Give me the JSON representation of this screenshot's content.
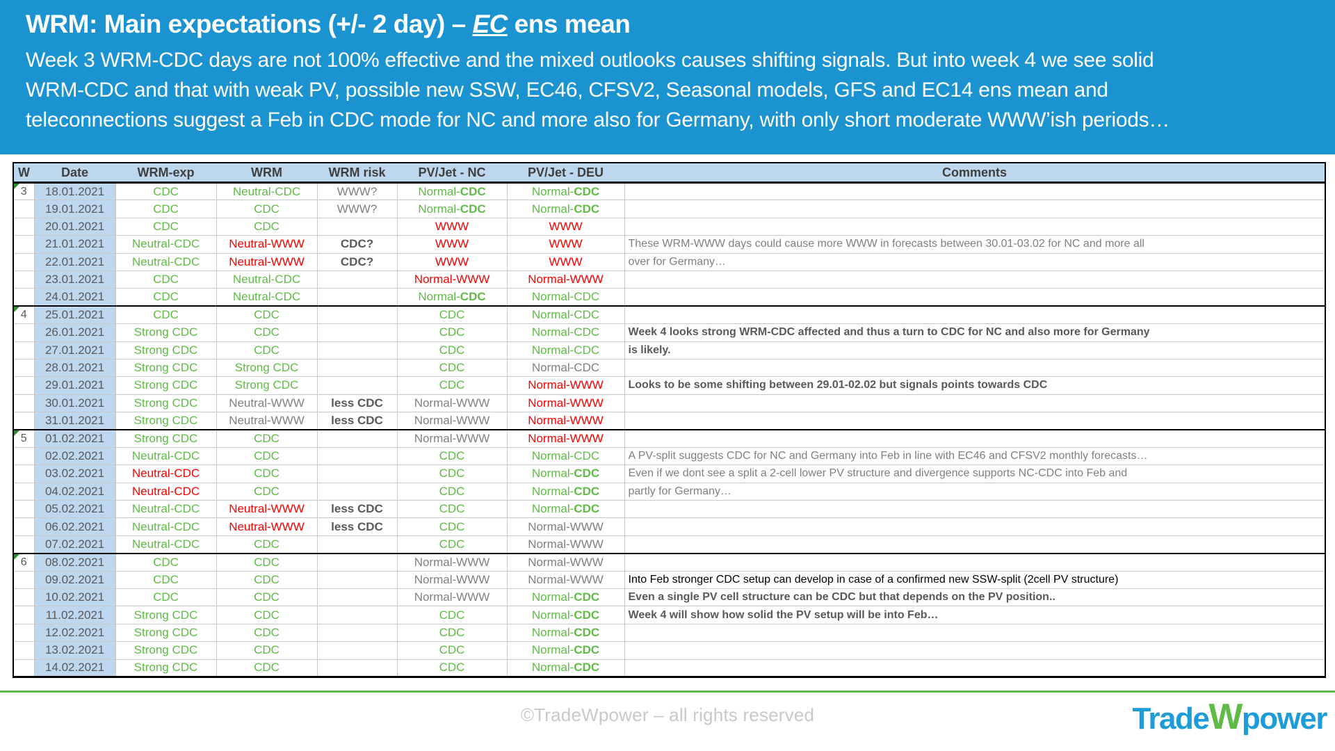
{
  "banner": {
    "title_prefix": "WRM: Main expectations (+/- 2 day) – ",
    "title_em": "EC",
    "title_suffix": " ens mean",
    "subtitle_lines": [
      "Week 3 WRM-CDC days are not 100% effective and the mixed outlooks causes shifting signals. But into week 4 we see solid",
      "WRM-CDC and that with weak PV, possible new SSW, EC46, CFSV2, Seasonal models, GFS and EC14 ens mean and",
      "teleconnections suggest a Feb in CDC mode for NC and more also for Germany, with only short moderate WWW’ish periods…"
    ]
  },
  "colors": {
    "banner_bg": "#1A93D0",
    "header_cell_bg": "#BDD7EE",
    "positive_green": "#5FBB46",
    "negative_red": "#FF0000",
    "neutral_gray": "#808080",
    "strong_gray": "#595959",
    "footer_rule_green": "#5FBB46",
    "logo_blue": "#1E9CD9",
    "logo_green": "#5FBB46"
  },
  "table": {
    "columns": [
      "W",
      "Date",
      "WRM-exp",
      "WRM",
      "WRM risk",
      "PV/Jet - NC",
      "PV/Jet - DEU",
      "Comments"
    ],
    "rows": [
      {
        "w": "3",
        "week_start": true,
        "date": "18.01.2021",
        "wrm_exp": [
          "CDC",
          "g"
        ],
        "wrm": [
          "Neutral-CDC",
          "g"
        ],
        "risk": [
          "WWW?",
          "gy"
        ],
        "nc": [
          "Normal-CDC",
          "gb"
        ],
        "deu": [
          "Normal-CDC",
          "gb"
        ],
        "comment": [
          "",
          ""
        ]
      },
      {
        "w": "",
        "date": "19.01.2021",
        "wrm_exp": [
          "CDC",
          "g"
        ],
        "wrm": [
          "CDC",
          "g"
        ],
        "risk": [
          "WWW?",
          "gy"
        ],
        "nc": [
          "Normal-CDC",
          "gb"
        ],
        "deu": [
          "Normal-CDC",
          "gb"
        ],
        "comment": [
          "",
          ""
        ]
      },
      {
        "w": "",
        "date": "20.01.2021",
        "wrm_exp": [
          "CDC",
          "g"
        ],
        "wrm": [
          "CDC",
          "g"
        ],
        "risk": [
          "",
          ""
        ],
        "nc": [
          "WWW",
          "r"
        ],
        "deu": [
          "WWW",
          "r"
        ],
        "comment": [
          "",
          ""
        ]
      },
      {
        "w": "",
        "date": "21.01.2021",
        "wrm_exp": [
          "Neutral-CDC",
          "g"
        ],
        "wrm": [
          "Neutral-WWW",
          "r"
        ],
        "risk": [
          "CDC?",
          "gyb"
        ],
        "nc": [
          "WWW",
          "r"
        ],
        "deu": [
          "WWW",
          "r"
        ],
        "comment": [
          "These WRM-WWW days could cause more WWW in forecasts between 30.01-03.02 for NC and more all",
          "gy"
        ]
      },
      {
        "w": "",
        "date": "22.01.2021",
        "wrm_exp": [
          "Neutral-CDC",
          "g"
        ],
        "wrm": [
          "Neutral-WWW",
          "r"
        ],
        "risk": [
          "CDC?",
          "gyb"
        ],
        "nc": [
          "WWW",
          "r"
        ],
        "deu": [
          "WWW",
          "r"
        ],
        "comment": [
          "over for Germany…",
          "gy"
        ]
      },
      {
        "w": "",
        "date": "23.01.2021",
        "wrm_exp": [
          "CDC",
          "g"
        ],
        "wrm": [
          "Neutral-CDC",
          "g"
        ],
        "risk": [
          "",
          ""
        ],
        "nc": [
          "Normal-WWW",
          "r"
        ],
        "deu": [
          "Normal-WWW",
          "r"
        ],
        "comment": [
          "",
          ""
        ]
      },
      {
        "w": "",
        "date": "24.01.2021",
        "wrm_exp": [
          "CDC",
          "g"
        ],
        "wrm": [
          "Neutral-CDC",
          "g"
        ],
        "risk": [
          "",
          ""
        ],
        "nc": [
          "Normal-CDC",
          "gb"
        ],
        "deu": [
          "Normal-CDC",
          "g"
        ],
        "comment": [
          "",
          ""
        ]
      },
      {
        "w": "4",
        "week_start": true,
        "date": "25.01.2021",
        "wrm_exp": [
          "CDC",
          "g"
        ],
        "wrm": [
          "CDC",
          "g"
        ],
        "risk": [
          "",
          ""
        ],
        "nc": [
          "CDC",
          "g"
        ],
        "deu": [
          "Normal-CDC",
          "g"
        ],
        "comment": [
          "",
          ""
        ]
      },
      {
        "w": "",
        "date": "26.01.2021",
        "wrm_exp": [
          "Strong CDC",
          "g"
        ],
        "wrm": [
          "CDC",
          "g"
        ],
        "risk": [
          "",
          ""
        ],
        "nc": [
          "CDC",
          "g"
        ],
        "deu": [
          "Normal-CDC",
          "g"
        ],
        "comment": [
          "Week 4 looks strong WRM-CDC affected and thus a turn to CDC for NC and also more for Germany",
          "gyb"
        ]
      },
      {
        "w": "",
        "date": "27.01.2021",
        "wrm_exp": [
          "Strong CDC",
          "g"
        ],
        "wrm": [
          "CDC",
          "g"
        ],
        "risk": [
          "",
          ""
        ],
        "nc": [
          "CDC",
          "g"
        ],
        "deu": [
          "Normal-CDC",
          "g"
        ],
        "comment": [
          " is likely.",
          "gyb"
        ]
      },
      {
        "w": "",
        "date": "28.01.2021",
        "wrm_exp": [
          "Strong CDC",
          "g"
        ],
        "wrm": [
          "Strong CDC",
          "g"
        ],
        "risk": [
          "",
          ""
        ],
        "nc": [
          "CDC",
          "g"
        ],
        "deu": [
          "Normal-CDC",
          "gy"
        ],
        "comment": [
          "",
          ""
        ]
      },
      {
        "w": "",
        "date": "29.01.2021",
        "wrm_exp": [
          "Strong CDC",
          "g"
        ],
        "wrm": [
          "Strong CDC",
          "g"
        ],
        "risk": [
          "",
          ""
        ],
        "nc": [
          "CDC",
          "g"
        ],
        "deu": [
          "Normal-WWW",
          "r"
        ],
        "comment": [
          "Looks to be some shifting between 29.01-02.02 but signals points towards CDC",
          "gyb"
        ]
      },
      {
        "w": "",
        "date": "30.01.2021",
        "wrm_exp": [
          "Strong CDC",
          "g"
        ],
        "wrm": [
          "Neutral-WWW",
          "gy"
        ],
        "risk": [
          "less CDC",
          "gyb"
        ],
        "nc": [
          "Normal-WWW",
          "gy"
        ],
        "deu": [
          "Normal-WWW",
          "r"
        ],
        "comment": [
          "",
          ""
        ]
      },
      {
        "w": "",
        "date": "31.01.2021",
        "wrm_exp": [
          "Strong CDC",
          "g"
        ],
        "wrm": [
          "Neutral-WWW",
          "gy"
        ],
        "risk": [
          "less CDC",
          "gyb"
        ],
        "nc": [
          "Normal-WWW",
          "gy"
        ],
        "deu": [
          "Normal-WWW",
          "r"
        ],
        "comment": [
          "",
          ""
        ]
      },
      {
        "w": "5",
        "week_start": true,
        "date": "01.02.2021",
        "wrm_exp": [
          "Strong CDC",
          "g"
        ],
        "wrm": [
          "CDC",
          "g"
        ],
        "risk": [
          "",
          ""
        ],
        "nc": [
          "Normal-WWW",
          "gy"
        ],
        "deu": [
          "Normal-WWW",
          "r"
        ],
        "comment": [
          "",
          ""
        ]
      },
      {
        "w": "",
        "date": "02.02.2021",
        "wrm_exp": [
          "Neutral-CDC",
          "g"
        ],
        "wrm": [
          "CDC",
          "g"
        ],
        "risk": [
          "",
          ""
        ],
        "nc": [
          "CDC",
          "g"
        ],
        "deu": [
          "Normal-CDC",
          "g"
        ],
        "comment": [
          "A PV-split suggests CDC for NC and Germany into Feb in line with EC46 and CFSV2 monthly forecasts…",
          "gy"
        ]
      },
      {
        "w": "",
        "date": "03.02.2021",
        "wrm_exp": [
          "Neutral-CDC",
          "r"
        ],
        "wrm": [
          "CDC",
          "g"
        ],
        "risk": [
          "",
          ""
        ],
        "nc": [
          "CDC",
          "g"
        ],
        "deu": [
          "Normal-CDC",
          "gb"
        ],
        "comment": [
          "Even if we dont see a split a 2-cell lower PV structure and divergence supports NC-CDC into Feb and",
          "gy"
        ]
      },
      {
        "w": "",
        "date": "04.02.2021",
        "wrm_exp": [
          "Neutral-CDC",
          "r"
        ],
        "wrm": [
          "CDC",
          "g"
        ],
        "risk": [
          "",
          ""
        ],
        "nc": [
          "CDC",
          "g"
        ],
        "deu": [
          "Normal-CDC",
          "gb"
        ],
        "comment": [
          "partly for Germany…",
          "gy"
        ]
      },
      {
        "w": "",
        "date": "05.02.2021",
        "wrm_exp": [
          "Neutral-CDC",
          "g"
        ],
        "wrm": [
          "Neutral-WWW",
          "r"
        ],
        "risk": [
          "less CDC",
          "gyb"
        ],
        "nc": [
          "CDC",
          "g"
        ],
        "deu": [
          "Normal-CDC",
          "gb"
        ],
        "comment": [
          "",
          ""
        ]
      },
      {
        "w": "",
        "date": "06.02.2021",
        "wrm_exp": [
          "Neutral-CDC",
          "g"
        ],
        "wrm": [
          "Neutral-WWW",
          "r"
        ],
        "risk": [
          "less CDC",
          "gyb"
        ],
        "nc": [
          "CDC",
          "g"
        ],
        "deu": [
          "Normal-WWW",
          "gy"
        ],
        "comment": [
          "",
          ""
        ]
      },
      {
        "w": "",
        "date": "07.02.2021",
        "wrm_exp": [
          "Neutral-CDC",
          "g"
        ],
        "wrm": [
          "CDC",
          "g"
        ],
        "risk": [
          "",
          ""
        ],
        "nc": [
          "CDC",
          "g"
        ],
        "deu": [
          "Normal-WWW",
          "gy"
        ],
        "comment": [
          "",
          ""
        ]
      },
      {
        "w": "6",
        "week_start": true,
        "date": "08.02.2021",
        "wrm_exp": [
          "CDC",
          "g"
        ],
        "wrm": [
          "CDC",
          "g"
        ],
        "risk": [
          "",
          ""
        ],
        "nc": [
          "Normal-WWW",
          "gy"
        ],
        "deu": [
          "Normal-WWW",
          "gy"
        ],
        "comment": [
          "",
          ""
        ]
      },
      {
        "w": "",
        "date": "09.02.2021",
        "wrm_exp": [
          "CDC",
          "g"
        ],
        "wrm": [
          "CDC",
          "g"
        ],
        "risk": [
          "",
          ""
        ],
        "nc": [
          "Normal-WWW",
          "gy"
        ],
        "deu": [
          "Normal-WWW",
          "gy"
        ],
        "comment": [
          "Into Feb stronger CDC setup can develop in case of a confirmed new SSW-split (2cell PV structure)",
          "k"
        ]
      },
      {
        "w": "",
        "date": "10.02.2021",
        "wrm_exp": [
          "CDC",
          "g"
        ],
        "wrm": [
          "CDC",
          "g"
        ],
        "risk": [
          "",
          ""
        ],
        "nc": [
          "Normal-WWW",
          "gy"
        ],
        "deu": [
          "Normal-CDC",
          "gb"
        ],
        "comment": [
          "Even a single PV cell structure can be CDC but that depends on the PV position..",
          "gyb"
        ]
      },
      {
        "w": "",
        "date": "11.02.2021",
        "wrm_exp": [
          "Strong CDC",
          "g"
        ],
        "wrm": [
          "CDC",
          "g"
        ],
        "risk": [
          "",
          ""
        ],
        "nc": [
          "CDC",
          "g"
        ],
        "deu": [
          "Normal-CDC",
          "gb"
        ],
        "comment": [
          "Week 4 will show how solid the PV setup will be into Feb…",
          "gyb"
        ]
      },
      {
        "w": "",
        "date": "12.02.2021",
        "wrm_exp": [
          "Strong CDC",
          "g"
        ],
        "wrm": [
          "CDC",
          "g"
        ],
        "risk": [
          "",
          ""
        ],
        "nc": [
          "CDC",
          "g"
        ],
        "deu": [
          "Normal-CDC",
          "gb"
        ],
        "comment": [
          "",
          ""
        ]
      },
      {
        "w": "",
        "date": "13.02.2021",
        "wrm_exp": [
          "Strong CDC",
          "g"
        ],
        "wrm": [
          "CDC",
          "g"
        ],
        "risk": [
          "",
          ""
        ],
        "nc": [
          "CDC",
          "g"
        ],
        "deu": [
          "Normal-CDC",
          "gb"
        ],
        "comment": [
          "",
          ""
        ]
      },
      {
        "w": "",
        "date": "14.02.2021",
        "wrm_exp": [
          "Strong CDC",
          "g"
        ],
        "wrm": [
          "CDC",
          "g"
        ],
        "risk": [
          "",
          ""
        ],
        "nc": [
          "CDC",
          "g"
        ],
        "deu": [
          "Normal-CDC",
          "gb"
        ],
        "comment": [
          "",
          ""
        ]
      }
    ]
  },
  "footer": {
    "copyright": "©TradeWpower – all rights reserved",
    "logo": {
      "part1": "Trade",
      "part2": "W",
      "part3": "power"
    }
  }
}
